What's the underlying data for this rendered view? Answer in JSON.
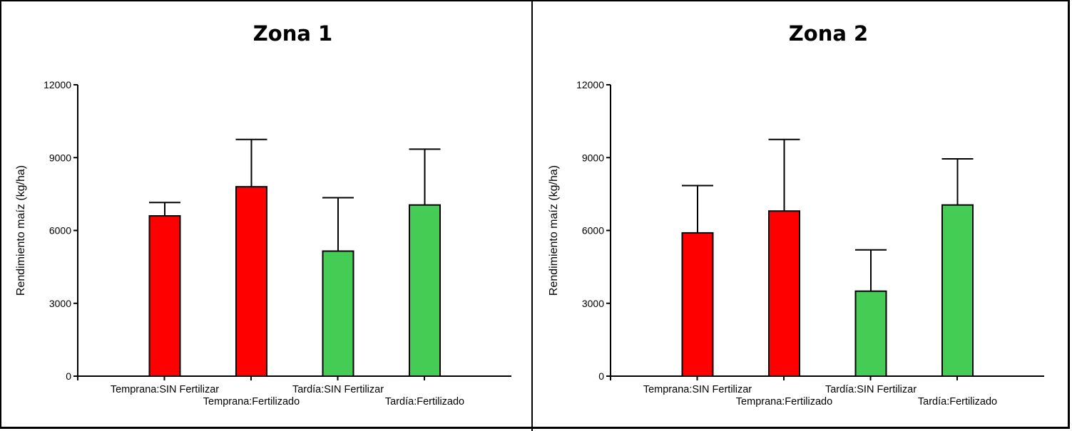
{
  "colors": {
    "early": "#ff0000",
    "late": "#44cc55",
    "axis": "#000000",
    "frame": "#000000"
  },
  "chart_data": [
    {
      "type": "bar",
      "title": "Zona 1",
      "ylabel": "Rendimiento maíz (kg/ha)",
      "xlabel": "",
      "ylim": [
        0,
        12000
      ],
      "yticks": [
        0,
        3000,
        6000,
        9000,
        12000
      ],
      "ytick_labels": [
        "0",
        "3000",
        "6000",
        "9000",
        "12000"
      ],
      "categories": [
        "Temprana:SIN Fertilizar",
        "Temprana:Fertilizado",
        "Tardía:SIN Fertilizar",
        "Tardía:Fertilizado"
      ],
      "values": [
        6600,
        7800,
        5150,
        7050
      ],
      "error_upper": [
        7150,
        9750,
        7350,
        9350
      ],
      "bar_colors": [
        "early",
        "early",
        "late",
        "late"
      ]
    },
    {
      "type": "bar",
      "title": "Zona 2",
      "ylabel": "Rendimiento maíz (kg/ha)",
      "xlabel": "",
      "ylim": [
        0,
        12000
      ],
      "yticks": [
        0,
        3000,
        6000,
        9000,
        12000
      ],
      "ytick_labels": [
        "0",
        "3000",
        "6000",
        "9000",
        "12000"
      ],
      "categories": [
        "Temprana:SIN Fertilizar",
        "Temprana:Fertilizado",
        "Tardía:SIN Fertilizar",
        "Tardía:Fertilizado"
      ],
      "values": [
        5900,
        6800,
        3500,
        7050
      ],
      "error_upper": [
        7850,
        9750,
        5200,
        8950
      ],
      "bar_colors": [
        "early",
        "early",
        "late",
        "late"
      ]
    }
  ]
}
